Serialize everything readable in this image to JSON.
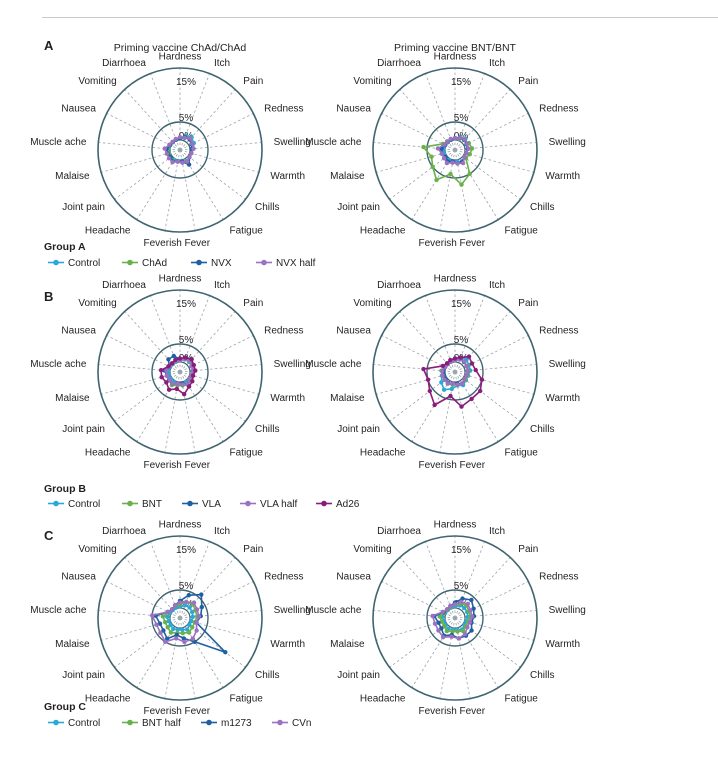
{
  "top_rule": true,
  "axes": [
    "Hardness",
    "Itch",
    "Pain",
    "Redness",
    "Swelling",
    "Warmth",
    "Chills",
    "Fatigue",
    "Fever",
    "Feverish",
    "Headache",
    "Joint pain",
    "Malaise",
    "Muscle ache",
    "Nausea",
    "Vomiting",
    "Diarrhoea"
  ],
  "ticks": [
    "0%",
    "5%",
    "15%"
  ],
  "panels": [
    {
      "letter": "A",
      "group_title": "Group A",
      "legend": [
        {
          "name": "Control",
          "color": "#2aa9d8"
        },
        {
          "name": "ChAd",
          "color": "#6ab04c"
        },
        {
          "name": "NVX",
          "color": "#1f5fa3"
        },
        {
          "name": "NVX half",
          "color": "#9b72c2"
        }
      ]
    },
    {
      "letter": "B",
      "group_title": "Group B",
      "legend": [
        {
          "name": "Control",
          "color": "#2aa9d8"
        },
        {
          "name": "BNT",
          "color": "#6ab04c"
        },
        {
          "name": "VLA",
          "color": "#1f5fa3"
        },
        {
          "name": "VLA half",
          "color": "#9b72c2"
        },
        {
          "name": "Ad26",
          "color": "#8a1c7c"
        }
      ]
    },
    {
      "letter": "C",
      "group_title": "Group C",
      "legend": [
        {
          "name": "Control",
          "color": "#2aa9d8"
        },
        {
          "name": "BNT half",
          "color": "#6ab04c"
        },
        {
          "name": "m1273",
          "color": "#1f5fa3"
        },
        {
          "name": "CVn",
          "color": "#9b72c2"
        }
      ]
    }
  ],
  "chart_data": [
    {
      "type": "radar",
      "panel": "A",
      "title": "Priming vaccine ChAd/ChAd",
      "unit": "%",
      "rlim": [
        0,
        20
      ],
      "series": [
        {
          "name": "Control",
          "color": "#2aa9d8",
          "values": [
            0.5,
            1.5,
            2,
            1.5,
            1,
            0.5,
            0.5,
            0.8,
            0.3,
            0.3,
            0.5,
            0.5,
            0.5,
            0.5,
            0.3,
            0.2,
            0.3
          ]
        },
        {
          "name": "ChAd",
          "color": "#6ab04c",
          "values": [
            0.5,
            1,
            1.5,
            1,
            0.8,
            0.5,
            0.5,
            1,
            0.5,
            0.5,
            0.8,
            0.5,
            0.5,
            0.8,
            0.3,
            0.2,
            0.3
          ]
        },
        {
          "name": "NVX",
          "color": "#1f5fa3",
          "values": [
            0.5,
            1,
            1.2,
            0.8,
            0.5,
            0.5,
            0.5,
            2,
            0.5,
            0.5,
            1,
            0.5,
            0.8,
            1,
            0.3,
            0.2,
            0.3
          ]
        },
        {
          "name": "NVX half",
          "color": "#9b72c2",
          "values": [
            0.8,
            0.8,
            1.5,
            1,
            1,
            0.5,
            0.5,
            1,
            0.8,
            0.5,
            1.2,
            1,
            1,
            1.5,
            0.5,
            0.3,
            0.5
          ]
        }
      ]
    },
    {
      "type": "radar",
      "panel": "A",
      "title": "Priming vaccine BNT/BNT",
      "unit": "%",
      "rlim": [
        0,
        20
      ],
      "series": [
        {
          "name": "Control",
          "color": "#2aa9d8",
          "values": [
            0.5,
            1,
            1.5,
            1,
            0.8,
            0.5,
            0.5,
            1,
            0.5,
            0.5,
            0.5,
            0.5,
            0.5,
            0.5,
            0.3,
            0.2,
            0.3
          ]
        },
        {
          "name": "ChAd",
          "color": "#6ab04c",
          "values": [
            0.5,
            0.5,
            1,
            1.5,
            2,
            1.5,
            1,
            5,
            7,
            4,
            7,
            5,
            4,
            6,
            1,
            0.5,
            0.5
          ]
        },
        {
          "name": "NVX",
          "color": "#1f5fa3",
          "values": [
            0.5,
            0.8,
            1,
            0.8,
            0.8,
            0.5,
            0.5,
            1,
            1,
            0.5,
            1,
            0.5,
            1,
            1,
            0.3,
            0.2,
            0.3
          ]
        },
        {
          "name": "NVX half",
          "color": "#9b72c2",
          "values": [
            0.5,
            0.8,
            1.2,
            1,
            1,
            0.5,
            0.5,
            1.5,
            1,
            0.8,
            1.5,
            1,
            1,
            2,
            0.5,
            0.3,
            0.5
          ]
        }
      ]
    },
    {
      "type": "radar",
      "panel": "B",
      "title": "",
      "unit": "%",
      "rlim": [
        0,
        20
      ],
      "series": [
        {
          "name": "Control",
          "color": "#2aa9d8",
          "values": [
            0.5,
            1,
            1,
            0.8,
            0.8,
            0.5,
            0.5,
            0.5,
            0.5,
            0.5,
            0.5,
            0.5,
            0.5,
            0.5,
            0.3,
            0.2,
            0.3
          ]
        },
        {
          "name": "BNT",
          "color": "#6ab04c",
          "values": [
            0.5,
            1,
            1.2,
            1,
            1,
            0.8,
            0.8,
            1.5,
            1,
            1,
            1.5,
            1,
            1,
            1,
            0.5,
            0.3,
            0.5
          ]
        },
        {
          "name": "VLA",
          "color": "#1f5fa3",
          "values": [
            0.8,
            1.5,
            2,
            1,
            0.8,
            0.5,
            0.5,
            1,
            0.5,
            0.5,
            1,
            1,
            1,
            1.5,
            0.5,
            2,
            2
          ]
        },
        {
          "name": "VLA half",
          "color": "#9b72c2",
          "values": [
            0.5,
            1,
            1.5,
            0.8,
            0.8,
            0.5,
            0.5,
            1,
            0.8,
            0.5,
            1,
            0.8,
            1,
            1,
            0.5,
            0.5,
            0.5
          ]
        },
        {
          "name": "Ad26",
          "color": "#8a1c7c",
          "values": [
            1,
            1.5,
            2,
            1.5,
            1.5,
            1,
            1.5,
            2,
            3.5,
            2,
            3,
            2,
            2.5,
            2.5,
            0.8,
            0.5,
            0.8
          ]
        }
      ]
    },
    {
      "type": "radar",
      "panel": "B",
      "title": "",
      "unit": "%",
      "rlim": [
        0,
        20
      ],
      "series": [
        {
          "name": "Control",
          "color": "#2aa9d8",
          "values": [
            1,
            1.5,
            2,
            1.5,
            1.5,
            1,
            1,
            1.5,
            1,
            2,
            3,
            2,
            1,
            1,
            0.5,
            0.5,
            0.5
          ]
        },
        {
          "name": "BNT",
          "color": "#6ab04c",
          "values": [
            0.5,
            1,
            1,
            1,
            1,
            0.8,
            0.8,
            1,
            0.8,
            0.8,
            1,
            0.8,
            0.8,
            1,
            0.3,
            0.2,
            0.3
          ]
        },
        {
          "name": "VLA",
          "color": "#1f5fa3",
          "values": [
            0.5,
            1,
            1,
            0.8,
            0.8,
            0.5,
            0.5,
            1,
            0.5,
            0.5,
            0.8,
            0.5,
            0.5,
            0.5,
            0.3,
            0.2,
            0.3
          ]
        },
        {
          "name": "VLA half",
          "color": "#9b72c2",
          "values": [
            0.5,
            1,
            1.2,
            0.8,
            0.8,
            0.5,
            0.5,
            1,
            0.8,
            0.5,
            1,
            0.8,
            0.8,
            0.8,
            0.3,
            0.2,
            0.3
          ]
        },
        {
          "name": "Ad26",
          "color": "#8a1c7c",
          "values": [
            1,
            1.5,
            3,
            2.5,
            3,
            5,
            6,
            6,
            7,
            4,
            8,
            6,
            5,
            6,
            1,
            0.5,
            0.8
          ]
        }
      ]
    },
    {
      "type": "radar",
      "panel": "C",
      "title": "",
      "unit": "%",
      "rlim": [
        0,
        20
      ],
      "series": [
        {
          "name": "Control",
          "color": "#2aa9d8",
          "values": [
            0.5,
            1,
            1.2,
            1,
            0.8,
            0.5,
            0.5,
            1,
            0.5,
            0.5,
            0.8,
            0.5,
            0.5,
            0.8,
            0.3,
            0.2,
            0.3
          ]
        },
        {
          "name": "BNT half",
          "color": "#6ab04c",
          "values": [
            1,
            2,
            2.5,
            2,
            2,
            1.5,
            1.5,
            2,
            1.5,
            1.5,
            2,
            1.5,
            1.5,
            2,
            0.8,
            0.5,
            0.8
          ]
        },
        {
          "name": "m1273",
          "color": "#1f5fa3",
          "values": [
            2,
            4,
            6,
            4,
            3,
            2,
            13,
            5,
            3,
            2,
            4,
            3,
            3,
            4,
            1,
            0.5,
            1
          ]
        },
        {
          "name": "CVn",
          "color": "#9b72c2",
          "values": [
            1.5,
            2,
            3,
            2.5,
            2.5,
            2,
            3,
            4,
            4,
            3,
            5,
            4,
            4,
            5,
            1,
            0.5,
            1
          ]
        }
      ]
    },
    {
      "type": "radar",
      "panel": "C",
      "title": "",
      "unit": "%",
      "rlim": [
        0,
        20
      ],
      "series": [
        {
          "name": "Control",
          "color": "#2aa9d8",
          "values": [
            0.5,
            1,
            1,
            1,
            0.8,
            0.5,
            0.5,
            1,
            0.5,
            0.5,
            0.8,
            0.5,
            0.5,
            0.8,
            0.3,
            0.2,
            0.3
          ]
        },
        {
          "name": "BNT half",
          "color": "#6ab04c",
          "values": [
            1,
            1.5,
            2,
            1.5,
            1.5,
            1,
            1,
            1.5,
            1,
            1,
            1.5,
            1,
            1,
            1.5,
            0.5,
            0.3,
            0.5
          ]
        },
        {
          "name": "m1273",
          "color": "#1f5fa3",
          "values": [
            1.5,
            3,
            4,
            3,
            2.5,
            2,
            3,
            3,
            3,
            2,
            3,
            2,
            2,
            3,
            0.8,
            0.5,
            0.8
          ]
        },
        {
          "name": "CVn",
          "color": "#9b72c2",
          "values": [
            1,
            2,
            2.5,
            2,
            2,
            1.5,
            1.5,
            2.5,
            3,
            2.5,
            3.5,
            3,
            3,
            3.5,
            1,
            0.5,
            0.8
          ]
        }
      ]
    }
  ]
}
